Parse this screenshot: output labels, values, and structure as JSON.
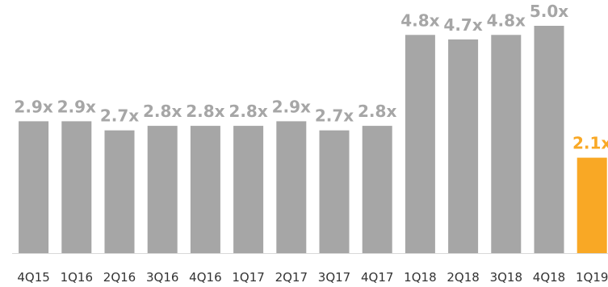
{
  "chart_data": {
    "type": "bar",
    "categories": [
      "4Q15",
      "1Q16",
      "2Q16",
      "3Q16",
      "4Q16",
      "1Q17",
      "2Q17",
      "3Q17",
      "4Q17",
      "1Q18",
      "2Q18",
      "3Q18",
      "4Q18",
      "1Q19"
    ],
    "values": [
      2.9,
      2.9,
      2.7,
      2.8,
      2.8,
      2.8,
      2.9,
      2.7,
      2.8,
      4.8,
      4.7,
      4.8,
      5.0,
      2.1
    ],
    "data_labels": [
      "2.9x",
      "2.9x",
      "2.7x",
      "2.8x",
      "2.8x",
      "2.8x",
      "2.9x",
      "2.7x",
      "2.8x",
      "4.8x",
      "4.7x",
      "4.8x",
      "5.0x",
      "2.1x"
    ],
    "title": "",
    "xlabel": "",
    "ylabel": "",
    "ylim": [
      0,
      5.5
    ],
    "grid": false,
    "legend": "none",
    "colors": {
      "default_bar": "#a6a6a6",
      "highlight_bar": "#f9a825",
      "default_label": "#a6a6a6",
      "highlight_label": "#f9a825",
      "axis": "#d9d9d9",
      "tick_text": "#333333"
    },
    "highlight_index": 13
  }
}
